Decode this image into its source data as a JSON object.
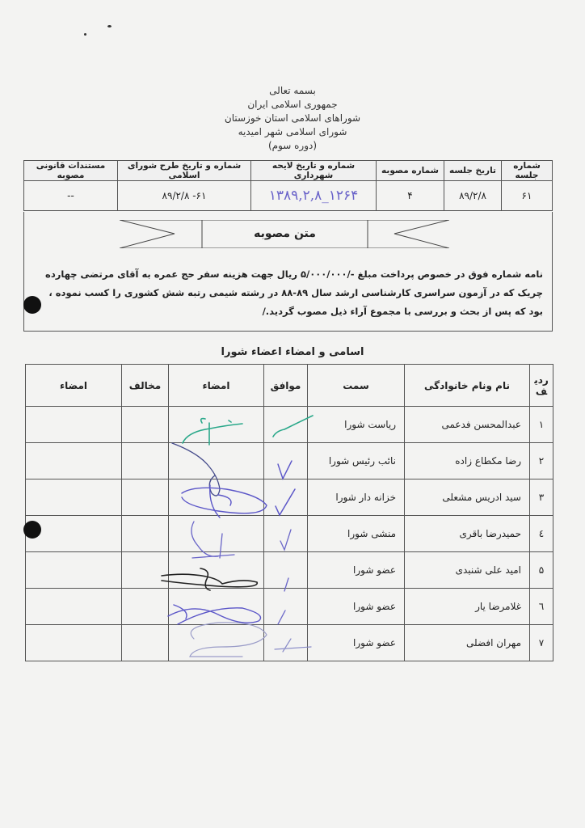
{
  "header": {
    "lines": [
      "بسمه تعالی",
      "جمهوری اسلامی ایران",
      "شوراهای اسلامی استان خوزستان",
      "شورای اسلامی شهر امیدیه",
      "(دوره سوم)"
    ]
  },
  "session_table": {
    "headers": [
      "شماره جلسه",
      "تاریخ جلسه",
      "شماره مصوبه",
      "شماره و تاریخ  لایحه شهرداری",
      "شماره و تاریخ طرح شورای اسلامی",
      "مستندات قانونی مصوبه"
    ],
    "values": [
      "۶۱",
      "۸۹/۲/۸",
      "۴",
      "۱۳۸۹,۲,۸_۱۲۶۴",
      "۸۹/۲/۸  -۶۱",
      "--"
    ]
  },
  "resolution": {
    "title": "متن مصوبه",
    "lines": [
      "نامه شماره فوق در خصوص پرداخت مبلغ -/۵/۰۰۰/۰۰۰ ریال جهت هزینه سفر حج عمره به آقای مرتضی چهارده چریک که",
      "در آزمون سراسری کارشناسی ارشد سال ۸۹-۸۸ در رشته شیمی رتبه شش کشوری را کسب نموده ، بود که پس از بحث",
      "و بررسی با مجموع آراء ذیل مصوب گردید./"
    ]
  },
  "members": {
    "title": "اسامی و امضاء اعضاء شورا",
    "headers": [
      "ردیف",
      "نام ونام خانوادگی",
      "سمت",
      "موافق",
      "امضاء",
      "مخالف",
      "امضاء"
    ],
    "rows": [
      {
        "no": "۱",
        "name": "عبدالمحسن فدعمی",
        "role": "ریاست شورا",
        "approved": true,
        "signed": true
      },
      {
        "no": "۲",
        "name": "رضا مکطاع زاده",
        "role": "نائب رئیس شورا",
        "approved": true,
        "signed": true
      },
      {
        "no": "۳",
        "name": "سید ادریس مشعلی",
        "role": "خزانه دار شورا",
        "approved": true,
        "signed": true
      },
      {
        "no": "٤",
        "name": "حمیدرضا باقری",
        "role": "منشی شورا",
        "approved": true,
        "signed": true
      },
      {
        "no": "۵",
        "name": "امید علی شنبدی",
        "role": "عضو شورا",
        "approved": true,
        "signed": true
      },
      {
        "no": "٦",
        "name": "غلامرضا یار",
        "role": "عضو شورا",
        "approved": true,
        "signed": true
      },
      {
        "no": "۷",
        "name": "مهران افضلی",
        "role": "عضو شورا",
        "approved": true,
        "signed": true
      }
    ]
  },
  "colors": {
    "ink_teal": "#2aa88a",
    "ink_blue": "#5b56c8",
    "ink_black": "#222222"
  }
}
